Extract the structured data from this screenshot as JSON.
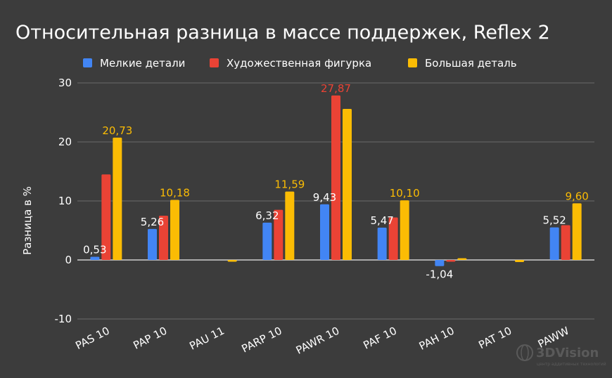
{
  "chart_data": {
    "type": "bar",
    "title": "Относительная разница в массе поддержек, Reflex 2",
    "ylabel": "Разница в %",
    "xlabel": "",
    "ylim": [
      -10,
      30
    ],
    "yticks": [
      -10,
      0,
      10,
      20,
      30
    ],
    "grid": true,
    "legend": "top",
    "categories": [
      "PAS 10",
      "PAP 10",
      "PAU 11",
      "PARP 10",
      "PAWR 10",
      "PAF 10",
      "PAH 10",
      "PAT 10",
      "PAWW"
    ],
    "series": [
      {
        "name": "Мелкие детали",
        "color": "#4285f4",
        "values": [
          0.53,
          5.26,
          0.0,
          6.32,
          9.43,
          5.47,
          -1.04,
          0.0,
          5.52
        ],
        "labels": [
          "0,53",
          "5,26",
          "",
          "6,32",
          "9,43",
          "5,47",
          "-1,04",
          "",
          "5,52"
        ]
      },
      {
        "name": "Художественная фигурка",
        "color": "#ea4335",
        "values": [
          14.5,
          7.5,
          0.0,
          8.5,
          27.87,
          7.2,
          -0.3,
          0.0,
          5.9
        ],
        "labels": [
          "",
          "",
          "",
          "",
          "27,87",
          "",
          "",
          "",
          ""
        ]
      },
      {
        "name": "Большая деталь",
        "color": "#fbbc04",
        "values": [
          20.73,
          10.18,
          -0.15,
          11.59,
          25.6,
          10.1,
          0.25,
          -0.35,
          9.6
        ],
        "labels": [
          "20,73",
          "10,18",
          "",
          "11,59",
          "",
          "10,10",
          "",
          "",
          "9,60"
        ]
      }
    ]
  },
  "watermark": {
    "brand": "3DVision",
    "tagline": "центр аддитивных технологий",
    "icon": "globe-icon"
  }
}
